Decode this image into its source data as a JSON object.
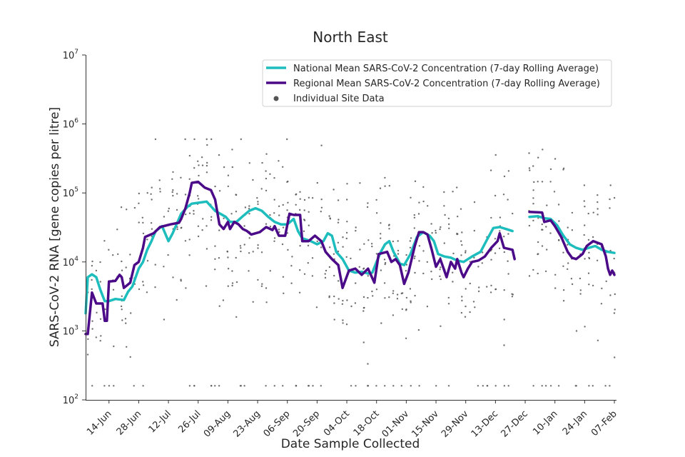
{
  "chart_data": {
    "type": "line",
    "title": "North East",
    "xlabel": "Date Sample Collected",
    "ylabel": "SARS-CoV-2 RNA [gene copies per litre]",
    "yscale": "log",
    "ylim": [
      100,
      10000000
    ],
    "y_ticks": [
      {
        "value": 100,
        "base": "10",
        "exp": "2"
      },
      {
        "value": 1000,
        "base": "10",
        "exp": "3"
      },
      {
        "value": 10000,
        "base": "10",
        "exp": "4"
      },
      {
        "value": 100000,
        "base": "10",
        "exp": "5"
      },
      {
        "value": 1000000,
        "base": "10",
        "exp": "6"
      },
      {
        "value": 10000000,
        "base": "10",
        "exp": "7"
      }
    ],
    "x_range_days": [
      0,
      250
    ],
    "x_ticks": [
      {
        "day": 11,
        "label": "14-Jun"
      },
      {
        "day": 25,
        "label": "28-Jun"
      },
      {
        "day": 39,
        "label": "12-Jul"
      },
      {
        "day": 53,
        "label": "26-Jul"
      },
      {
        "day": 67,
        "label": "09-Aug"
      },
      {
        "day": 81,
        "label": "23-Aug"
      },
      {
        "day": 95,
        "label": "06-Sep"
      },
      {
        "day": 109,
        "label": "20-Sep"
      },
      {
        "day": 123,
        "label": "04-Oct"
      },
      {
        "day": 137,
        "label": "18-Oct"
      },
      {
        "day": 151,
        "label": "01-Nov"
      },
      {
        "day": 165,
        "label": "15-Nov"
      },
      {
        "day": 179,
        "label": "29-Nov"
      },
      {
        "day": 193,
        "label": "13-Dec"
      },
      {
        "day": 207,
        "label": "27-Dec"
      },
      {
        "day": 221,
        "label": "10-Jan"
      },
      {
        "day": 235,
        "label": "24-Jan"
      },
      {
        "day": 249,
        "label": "07-Feb"
      }
    ],
    "legend": {
      "position": "top-right",
      "entries": [
        "National Mean SARS-CoV-2 Concentration (7-day Rolling Average)",
        "Regional Mean SARS-CoV-2 Concentration (7-day Rolling Average)",
        "Individual Site Data"
      ]
    },
    "series": [
      {
        "name": "National Mean SARS-CoV-2 Concentration (7-day Rolling Average)",
        "color": "#1ebdbd",
        "segments": [
          [
            [
              0,
              1800
            ],
            [
              1,
              6000
            ],
            [
              3,
              6600
            ],
            [
              5,
              6000
            ],
            [
              7,
              3900
            ],
            [
              9,
              2700
            ],
            [
              11,
              2700
            ],
            [
              14,
              2900
            ],
            [
              18,
              2800
            ],
            [
              20,
              3700
            ],
            [
              22,
              4400
            ],
            [
              25,
              8000
            ],
            [
              27,
              10000
            ],
            [
              29,
              15000
            ],
            [
              31,
              20000
            ],
            [
              33,
              28000
            ],
            [
              36,
              33000
            ],
            [
              39,
              20000
            ],
            [
              41,
              26000
            ],
            [
              45,
              50000
            ],
            [
              48,
              63000
            ],
            [
              50,
              70000
            ],
            [
              53,
              72000
            ],
            [
              57,
              75000
            ],
            [
              61,
              55000
            ],
            [
              66,
              45000
            ],
            [
              68,
              38000
            ],
            [
              71,
              38000
            ],
            [
              74,
              46000
            ],
            [
              77,
              55000
            ],
            [
              80,
              60000
            ],
            [
              83,
              55000
            ],
            [
              86,
              45000
            ],
            [
              89,
              38000
            ],
            [
              92,
              35000
            ],
            [
              95,
              35000
            ],
            [
              98,
              42000
            ],
            [
              100,
              28000
            ],
            [
              102,
              22000
            ],
            [
              106,
              20000
            ],
            [
              109,
              18000
            ],
            [
              112,
              20000
            ],
            [
              114,
              26000
            ],
            [
              116,
              24000
            ],
            [
              118,
              14000
            ],
            [
              121,
              11000
            ],
            [
              124,
              7500
            ],
            [
              127,
              7000
            ],
            [
              130,
              7200
            ],
            [
              133,
              6800
            ],
            [
              135,
              7000
            ],
            [
              137,
              10000
            ],
            [
              139,
              14000
            ],
            [
              141,
              18000
            ],
            [
              143,
              20000
            ],
            [
              145,
              14000
            ],
            [
              148,
              9500
            ],
            [
              150,
              9000
            ],
            [
              153,
              13000
            ],
            [
              156,
              23000
            ],
            [
              159,
              27000
            ],
            [
              162,
              24000
            ],
            [
              164,
              20000
            ],
            [
              166,
              13000
            ],
            [
              169,
              12000
            ],
            [
              172,
              11500
            ],
            [
              175,
              10500
            ],
            [
              178,
              10000
            ],
            [
              182,
              12000
            ],
            [
              186,
              14000
            ],
            [
              189,
              21000
            ],
            [
              192,
              31000
            ],
            [
              195,
              32000
            ],
            [
              198,
              30000
            ],
            [
              201,
              28000
            ]
          ],
          [
            [
              209,
              45000
            ],
            [
              213,
              46000
            ],
            [
              216,
              43000
            ],
            [
              219,
              42000
            ],
            [
              222,
              34000
            ],
            [
              225,
              24000
            ],
            [
              228,
              18000
            ],
            [
              231,
              16000
            ],
            [
              234,
              15000
            ],
            [
              237,
              16000
            ],
            [
              240,
              17000
            ],
            [
              243,
              15000
            ],
            [
              246,
              14000
            ],
            [
              249,
              13500
            ]
          ]
        ]
      },
      {
        "name": "Regional Mean SARS-CoV-2 Concentration (7-day Rolling Average)",
        "color": "#4b0a88",
        "segments": [
          [
            [
              0,
              900
            ],
            [
              1,
              900
            ],
            [
              3,
              3600
            ],
            [
              5,
              2500
            ],
            [
              8,
              2500
            ],
            [
              9,
              1400
            ],
            [
              10,
              1400
            ],
            [
              11,
              5200
            ],
            [
              14,
              5300
            ],
            [
              16,
              6500
            ],
            [
              17,
              6000
            ],
            [
              18,
              4200
            ],
            [
              21,
              5000
            ],
            [
              23,
              9000
            ],
            [
              25,
              10000
            ],
            [
              27,
              16000
            ],
            [
              28,
              23000
            ],
            [
              32,
              26000
            ],
            [
              35,
              32000
            ],
            [
              40,
              35000
            ],
            [
              44,
              37000
            ],
            [
              45,
              42000
            ],
            [
              47,
              60000
            ],
            [
              49,
              100000
            ],
            [
              50,
              140000
            ],
            [
              53,
              145000
            ],
            [
              56,
              120000
            ],
            [
              59,
              110000
            ],
            [
              61,
              80000
            ],
            [
              63,
              35000
            ],
            [
              65,
              30000
            ],
            [
              67,
              38000
            ],
            [
              68,
              30000
            ],
            [
              70,
              38000
            ],
            [
              72,
              35000
            ],
            [
              74,
              30000
            ],
            [
              76,
              28000
            ],
            [
              78,
              25000
            ],
            [
              82,
              27000
            ],
            [
              85,
              32000
            ],
            [
              88,
              29000
            ],
            [
              89,
              33000
            ],
            [
              91,
              24000
            ],
            [
              94,
              24000
            ],
            [
              96,
              50000
            ],
            [
              98,
              48000
            ],
            [
              101,
              48000
            ],
            [
              102,
              20000
            ],
            [
              105,
              20000
            ],
            [
              108,
              24000
            ],
            [
              111,
              20000
            ],
            [
              113,
              14000
            ],
            [
              116,
              11000
            ],
            [
              119,
              9000
            ],
            [
              121,
              4200
            ],
            [
              124,
              7500
            ],
            [
              127,
              8000
            ],
            [
              130,
              6500
            ],
            [
              133,
              8000
            ],
            [
              136,
              5000
            ],
            [
              138,
              13000
            ],
            [
              142,
              14000
            ],
            [
              144,
              10000
            ],
            [
              146,
              11000
            ],
            [
              148,
              9000
            ],
            [
              150,
              4800
            ],
            [
              152,
              7000
            ],
            [
              155,
              17000
            ],
            [
              157,
              27000
            ],
            [
              159,
              27000
            ],
            [
              161,
              25000
            ],
            [
              163,
              15000
            ],
            [
              165,
              8500
            ],
            [
              167,
              11000
            ],
            [
              168,
              9000
            ],
            [
              170,
              6000
            ],
            [
              172,
              10000
            ],
            [
              174,
              8000
            ],
            [
              175,
              11000
            ],
            [
              177,
              7000
            ],
            [
              178,
              6000
            ],
            [
              180,
              8000
            ],
            [
              182,
              10000
            ],
            [
              185,
              10500
            ],
            [
              188,
              12000
            ],
            [
              191,
              16000
            ],
            [
              194,
              20000
            ],
            [
              195,
              26000
            ],
            [
              197,
              16000
            ],
            [
              201,
              15000
            ],
            [
              202,
              11000
            ]
          ],
          [
            [
              209,
              53000
            ],
            [
              215,
              52000
            ],
            [
              216,
              38000
            ],
            [
              219,
              40000
            ],
            [
              221,
              33000
            ],
            [
              224,
              23000
            ],
            [
              227,
              14000
            ],
            [
              229,
              11500
            ],
            [
              231,
              11000
            ],
            [
              234,
              13000
            ],
            [
              236,
              17000
            ],
            [
              239,
              20000
            ],
            [
              243,
              18000
            ],
            [
              245,
              12000
            ],
            [
              246,
              8000
            ],
            [
              247,
              6500
            ],
            [
              248,
              7500
            ],
            [
              249,
              6500
            ]
          ]
        ]
      }
    ],
    "scatter_note": "Individual Site Data: several hundred grey points scattered roughly 100–600,000 across the whole date range"
  }
}
